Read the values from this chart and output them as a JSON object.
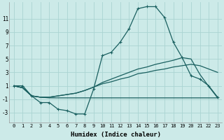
{
  "xlabel": "Humidex (Indice chaleur)",
  "x_ticks": [
    0,
    1,
    2,
    3,
    4,
    5,
    6,
    7,
    8,
    9,
    10,
    11,
    12,
    13,
    14,
    15,
    16,
    17,
    18,
    19,
    20,
    21,
    22,
    23
  ],
  "ylim": [
    -4.5,
    13.5
  ],
  "yticks": [
    -3,
    -1,
    1,
    3,
    5,
    7,
    9,
    11
  ],
  "bg_color": "#cceae8",
  "grid_color": "#aad4d2",
  "line_color": "#1a6060",
  "curve_main": [
    1,
    1,
    -0.5,
    -1.5,
    -1.5,
    -2.5,
    -2.7,
    -3.2,
    -3.2,
    0.5,
    5.5,
    6.0,
    7.5,
    9.5,
    12.5,
    12.8,
    12.8,
    11.2,
    7.5,
    5.2,
    2.5,
    2.0,
    1.0,
    -0.7
  ],
  "curve_upper": [
    1,
    0.7,
    -0.5,
    -0.7,
    -0.7,
    -0.5,
    -0.3,
    -0.1,
    0.3,
    0.8,
    1.5,
    2.0,
    2.5,
    3.0,
    3.5,
    3.8,
    4.2,
    4.5,
    4.8,
    5.2,
    5.0,
    2.7,
    0.9,
    -0.8
  ],
  "curve_mid": [
    1,
    0.7,
    -0.5,
    -0.7,
    -0.7,
    -0.5,
    -0.3,
    -0.1,
    0.3,
    0.8,
    1.3,
    1.6,
    2.0,
    2.3,
    2.8,
    3.0,
    3.3,
    3.5,
    3.8,
    4.0,
    4.2,
    4.0,
    3.5,
    3.0
  ],
  "curve_flat": [
    1,
    0.7,
    -0.5,
    -0.7,
    -0.8,
    -0.8,
    -0.8,
    -0.8,
    -0.8,
    -0.8,
    -0.8,
    -0.8,
    -0.8,
    -0.8,
    -0.8,
    -0.8,
    -0.8,
    -0.8,
    -0.8,
    -0.8,
    -0.8,
    -0.8,
    -0.8,
    -0.8
  ]
}
